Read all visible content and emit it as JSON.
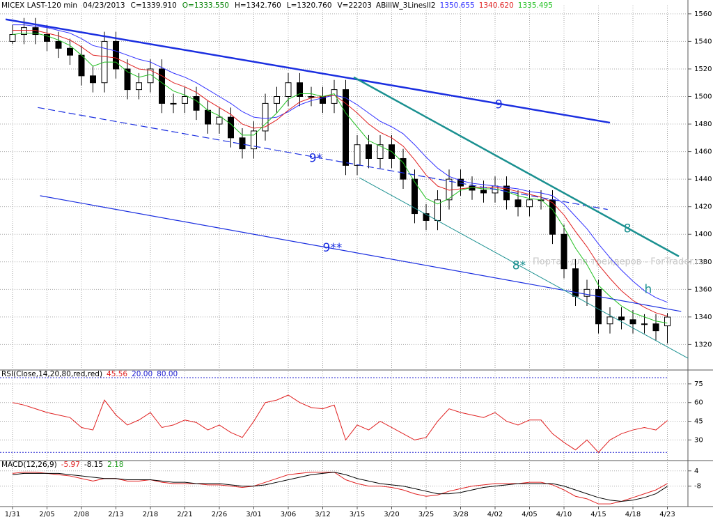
{
  "chart_data": [
    {
      "type": "candlestick",
      "title": "MICEX LAST-120 min",
      "date": "04/23/2013",
      "info": [
        {
          "text": "C=1339.910",
          "color": "#000000"
        },
        {
          "text": "O=1333.550",
          "color": "#008000"
        },
        {
          "text": "H=1342.760",
          "color": "#000000"
        },
        {
          "text": "L=1320.760",
          "color": "#000000"
        },
        {
          "text": "V=22203",
          "color": "#000000"
        }
      ],
      "indicator": "ABillW_3LinesII2",
      "categories": [
        "1/31",
        null,
        null,
        "2/05",
        null,
        null,
        "2/08",
        null,
        null,
        "2/13",
        null,
        null,
        "2/18",
        null,
        null,
        "2/21",
        null,
        null,
        "2/26",
        null,
        null,
        "3/01",
        null,
        null,
        "3/06",
        null,
        null,
        "3/12",
        null,
        null,
        "3/15",
        null,
        null,
        "3/20",
        null,
        null,
        "3/25",
        null,
        null,
        "3/28",
        null,
        null,
        "4/02",
        null,
        null,
        "4/05",
        null,
        null,
        "4/10",
        null,
        null,
        "4/15",
        null,
        null,
        "4/18",
        null,
        null,
        "4/23"
      ],
      "open": [
        1540,
        1545,
        1550,
        1545,
        1540,
        1535,
        1530,
        1515,
        1510,
        1540,
        1520,
        1505,
        1510,
        1520,
        1495,
        1495,
        1500,
        1490,
        1480,
        1485,
        1470,
        1462,
        1475,
        1495,
        1500,
        1510,
        1500,
        1500,
        1495,
        1505,
        1450,
        1465,
        1455,
        1465,
        1455,
        1440,
        1415,
        1410,
        1425,
        1440,
        1435,
        1432,
        1430,
        1435,
        1425,
        1420,
        1425,
        1425,
        1400,
        1375,
        1355,
        1360,
        1335,
        1340,
        1338,
        1335,
        1335,
        1333.55
      ],
      "high": [
        1552,
        1557,
        1557,
        1552,
        1547,
        1542,
        1537,
        1522,
        1547,
        1547,
        1527,
        1517,
        1527,
        1527,
        1502,
        1507,
        1507,
        1497,
        1492,
        1492,
        1477,
        1482,
        1502,
        1507,
        1517,
        1517,
        1507,
        1507,
        1512,
        1512,
        1472,
        1472,
        1472,
        1472,
        1462,
        1447,
        1422,
        1432,
        1447,
        1447,
        1442,
        1439,
        1442,
        1442,
        1432,
        1432,
        1432,
        1432,
        1407,
        1382,
        1367,
        1367,
        1347,
        1347,
        1345,
        1342,
        1342,
        1342.76
      ],
      "low": [
        1538,
        1538,
        1538,
        1533,
        1528,
        1523,
        1508,
        1503,
        1503,
        1513,
        1498,
        1498,
        1503,
        1488,
        1488,
        1488,
        1483,
        1473,
        1473,
        1463,
        1455,
        1455,
        1468,
        1488,
        1493,
        1493,
        1493,
        1488,
        1488,
        1443,
        1443,
        1448,
        1448,
        1448,
        1433,
        1408,
        1403,
        1403,
        1418,
        1428,
        1425,
        1423,
        1423,
        1418,
        1413,
        1413,
        1418,
        1393,
        1368,
        1348,
        1348,
        1328,
        1328,
        1331,
        1328,
        1328,
        1323,
        1320.76
      ],
      "close": [
        1545,
        1550,
        1545,
        1540,
        1535,
        1530,
        1515,
        1510,
        1540,
        1520,
        1505,
        1510,
        1520,
        1495,
        1495,
        1500,
        1490,
        1480,
        1485,
        1470,
        1462,
        1475,
        1495,
        1500,
        1510,
        1500,
        1500,
        1495,
        1505,
        1450,
        1465,
        1455,
        1465,
        1455,
        1440,
        1415,
        1410,
        1425,
        1440,
        1435,
        1432,
        1430,
        1435,
        1425,
        1420,
        1425,
        1425,
        1400,
        1375,
        1355,
        1360,
        1335,
        1340,
        1338,
        1335,
        1335,
        1330,
        1339.91
      ],
      "series": [
        {
          "color": "#3030ff",
          "label": "1350.655",
          "values": [
            1552,
            1552,
            1551,
            1550,
            1548,
            1546,
            1542,
            1537,
            1535,
            1533,
            1530,
            1527,
            1525,
            1521,
            1517,
            1514,
            1510,
            1505,
            1500,
            1495,
            1489,
            1485,
            1484,
            1485,
            1489,
            1494,
            1497,
            1499,
            1501,
            1499,
            1494,
            1488,
            1482,
            1478,
            1473,
            1465,
            1456,
            1448,
            1442,
            1439,
            1437,
            1436,
            1435,
            1434,
            1433,
            1431,
            1430,
            1428,
            1422,
            1413,
            1404,
            1393,
            1383,
            1374,
            1366,
            1359,
            1354,
            1350.655
          ]
        },
        {
          "color": "#e02020",
          "label": "1340.620",
          "values": [
            1548,
            1548,
            1548,
            1546,
            1544,
            1541,
            1536,
            1530,
            1529,
            1528,
            1524,
            1520,
            1519,
            1515,
            1510,
            1507,
            1503,
            1497,
            1492,
            1487,
            1480,
            1477,
            1478,
            1483,
            1490,
            1496,
            1499,
            1500,
            1501,
            1495,
            1488,
            1480,
            1474,
            1470,
            1464,
            1454,
            1443,
            1435,
            1432,
            1433,
            1434,
            1434,
            1434,
            1433,
            1431,
            1429,
            1427,
            1423,
            1414,
            1402,
            1391,
            1378,
            1368,
            1359,
            1352,
            1347,
            1343,
            1340.62
          ]
        },
        {
          "color": "#20c020",
          "label": "1335.495",
          "values": [
            1545,
            1546,
            1546,
            1544,
            1541,
            1537,
            1530,
            1522,
            1525,
            1525,
            1518,
            1514,
            1516,
            1510,
            1504,
            1501,
            1497,
            1490,
            1486,
            1480,
            1472,
            1472,
            1480,
            1488,
            1498,
            1502,
            1502,
            1500,
            1502,
            1488,
            1478,
            1468,
            1464,
            1460,
            1452,
            1438,
            1426,
            1422,
            1426,
            1432,
            1434,
            1433,
            1433,
            1431,
            1428,
            1426,
            1425,
            1418,
            1405,
            1390,
            1378,
            1363,
            1355,
            1348,
            1343,
            1340,
            1337,
            1335.495
          ]
        }
      ],
      "lines": [
        {
          "label": "9",
          "color": "#1a2ee0",
          "width": 2.5,
          "dash": false,
          "x": [
            -0.6,
            52
          ],
          "y": [
            1556,
            1481
          ],
          "label_at": [
            42,
            1494
          ]
        },
        {
          "label": "9*",
          "color": "#1a2ee0",
          "width": 1.2,
          "dash": true,
          "x": [
            2.2,
            51.8
          ],
          "y": [
            1492,
            1418
          ],
          "label_at": [
            25.8,
            1455
          ]
        },
        {
          "label": "9**",
          "color": "#1a2ee0",
          "width": 1.2,
          "dash": false,
          "x": [
            2.4,
            58.2
          ],
          "y": [
            1428,
            1344
          ],
          "label_at": [
            27,
            1390
          ]
        },
        {
          "label": "8",
          "color": "#1a9090",
          "width": 2.5,
          "dash": false,
          "x": [
            29.7,
            58
          ],
          "y": [
            1514,
            1384
          ],
          "label_at": [
            53.2,
            1404
          ]
        },
        {
          "label": "8*",
          "color": "#1a9090",
          "width": 1,
          "dash": false,
          "x": [
            30.2,
            58.8
          ],
          "y": [
            1441,
            1310
          ],
          "label_at": [
            43.5,
            1377
          ]
        },
        {
          "label": "h",
          "color": "#1a9090",
          "width": 0,
          "dash": false,
          "x": [],
          "y": [],
          "label_at": [
            55,
            1360
          ]
        }
      ],
      "watermark": "Портал для трейдеров - ForTrader.ru",
      "ylim": [
        1302,
        1566
      ],
      "yticks": [
        1320,
        1340,
        1360,
        1380,
        1400,
        1420,
        1440,
        1460,
        1480,
        1500,
        1520,
        1540,
        1560
      ],
      "grid": true
    },
    {
      "type": "line",
      "title": "RSI(Close,14,20,80,red,red)",
      "series": [
        {
          "color": "#e02020",
          "label": "45.56",
          "values": [
            60,
            58,
            55,
            52,
            50,
            48,
            40,
            38,
            62,
            50,
            42,
            46,
            52,
            40,
            42,
            46,
            44,
            38,
            42,
            36,
            32,
            45,
            60,
            62,
            66,
            60,
            56,
            55,
            58,
            30,
            42,
            38,
            45,
            40,
            35,
            30,
            32,
            45,
            55,
            52,
            50,
            48,
            52,
            45,
            42,
            46,
            46,
            35,
            28,
            22,
            30,
            20,
            30,
            35,
            38,
            40,
            38,
            45.56
          ]
        }
      ],
      "levels": [
        {
          "value": 20,
          "label": "20.00",
          "color": "#2020d0"
        },
        {
          "value": 80,
          "label": "80.00",
          "color": "#2020d0"
        }
      ],
      "ylim": [
        14,
        85
      ],
      "yticks": [
        30,
        45,
        60,
        75
      ],
      "grid": true
    },
    {
      "type": "line",
      "title": "MACD(12,26,9)",
      "series": [
        {
          "color": "#e02020",
          "label": "-5.97",
          "values": [
            2,
            3,
            3,
            2,
            1,
            0,
            -2,
            -4,
            -2,
            -2,
            -4,
            -4,
            -3,
            -5,
            -6,
            -6,
            -6,
            -7,
            -7,
            -8,
            -9,
            -8,
            -5,
            -2,
            1,
            2,
            3,
            3,
            3,
            -3,
            -6,
            -8,
            -8,
            -9,
            -11,
            -14,
            -16,
            -15,
            -12,
            -10,
            -8,
            -7,
            -6,
            -6,
            -6,
            -5,
            -5,
            -7,
            -11,
            -16,
            -18,
            -22,
            -22,
            -20,
            -17,
            -14,
            -11,
            -5.97
          ]
        },
        {
          "color": "#000000",
          "label": "-8.15",
          "values": [
            1,
            2,
            2,
            2,
            2,
            1,
            0,
            -1,
            -2,
            -2,
            -3,
            -3,
            -3,
            -4,
            -5,
            -5,
            -6,
            -6,
            -6,
            -7,
            -8,
            -8,
            -7,
            -5,
            -3,
            -1,
            1,
            2,
            3,
            1,
            -2,
            -4,
            -6,
            -7,
            -8,
            -10,
            -12,
            -14,
            -14,
            -13,
            -11,
            -9,
            -8,
            -7,
            -6,
            -6,
            -6,
            -6,
            -8,
            -11,
            -14,
            -17,
            -19,
            -20,
            -19,
            -17,
            -14,
            -8.15
          ]
        }
      ],
      "histogram_label": "2.18",
      "histogram_color": "#20a020",
      "ylim": [
        -23,
        11
      ],
      "yticks": [
        -8,
        4
      ],
      "grid": true
    }
  ]
}
